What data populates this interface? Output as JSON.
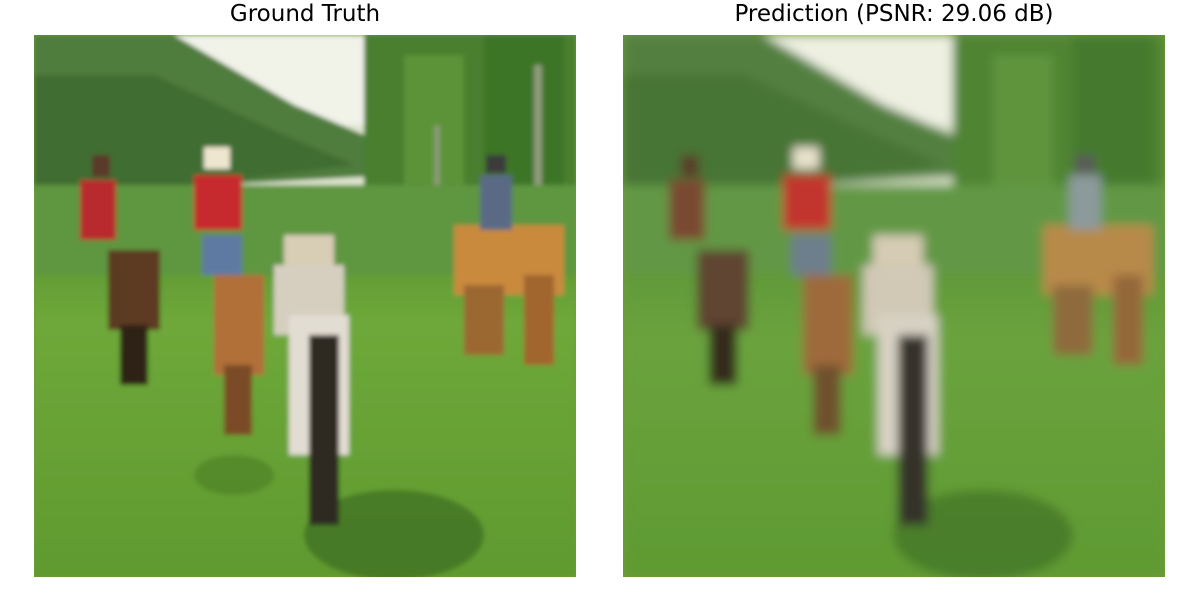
{
  "figure": {
    "panels": [
      {
        "title": "Ground Truth",
        "image": {
          "subject": "four riders on horseback crossing a green meadow toward trees and a hillside",
          "style": "low-resolution pixelated photo"
        }
      },
      {
        "title": "Prediction (PSNR: 29.06 dB)",
        "image": {
          "subject": "four riders on horseback crossing a green meadow toward trees and a hillside",
          "style": "blurrier reconstruction of the same photo"
        }
      }
    ]
  },
  "colors": {
    "grass": "#6fa53a",
    "grass_dark": "#3f6f22",
    "hill": "#4f7d3d",
    "sky": "#eef0e4",
    "trees": "#3f7a2a",
    "shirt_red": "#c0282d",
    "horse_brown": "#a86a35",
    "horse_dark": "#2f2418",
    "horse_white": "#e6e1d6",
    "hat_light": "#efe6cf"
  }
}
